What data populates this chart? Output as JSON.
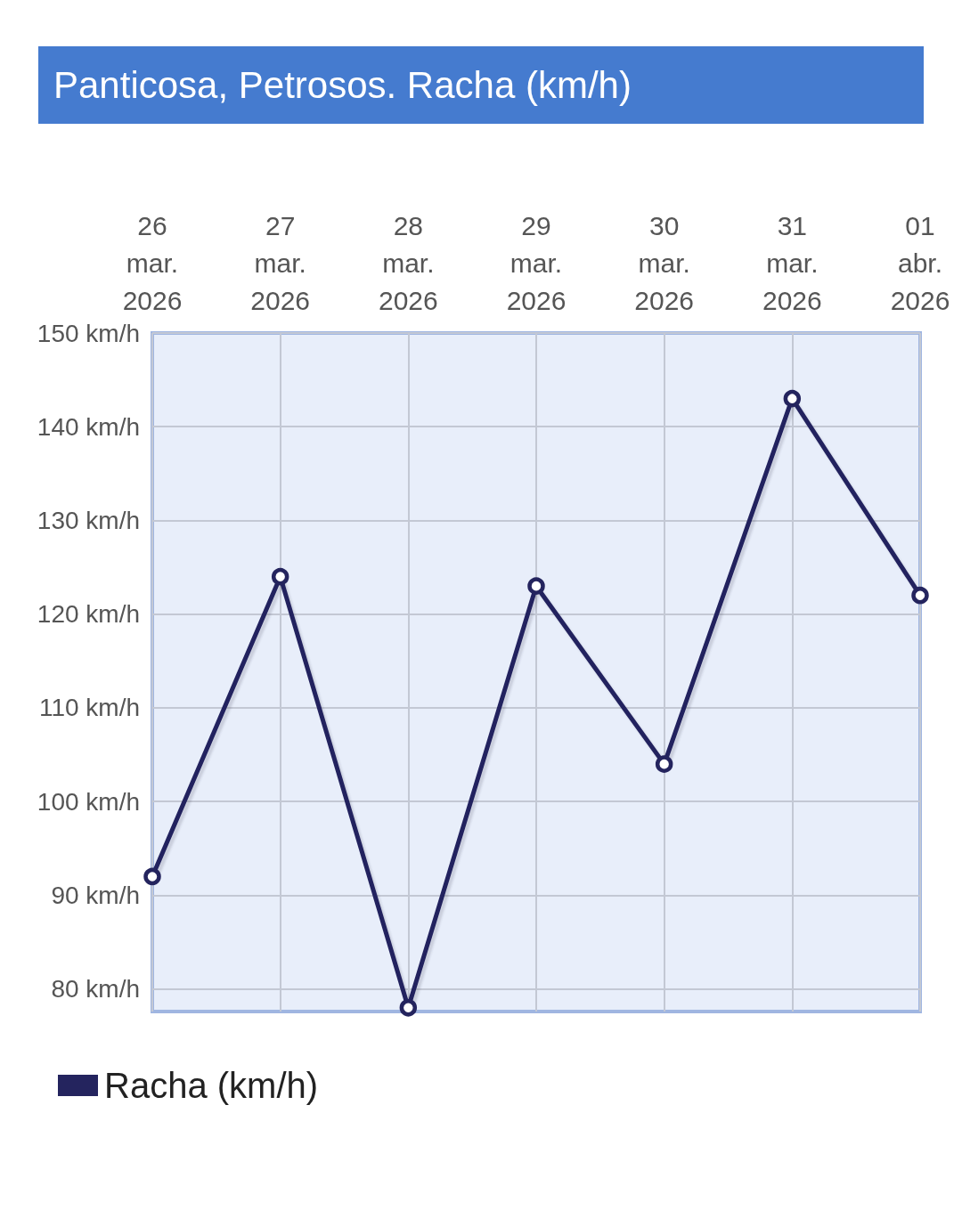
{
  "chart_data": {
    "type": "line",
    "title": "Panticosa, Petrosos. Racha (km/h)",
    "categories": [
      "26 mar. 2026",
      "27 mar. 2026",
      "28 mar. 2026",
      "29 mar. 2026",
      "30 mar. 2026",
      "31 mar. 2026",
      "01 abr. 2026"
    ],
    "series": [
      {
        "name": "Racha (km/h)",
        "color": "#24245e",
        "values": [
          92,
          124,
          78,
          123,
          104,
          143,
          122
        ]
      }
    ],
    "ylim": [
      77.6,
      150
    ],
    "yticks": [
      {
        "value": 80,
        "label": "80 km/h"
      },
      {
        "value": 90,
        "label": "90 km/h"
      },
      {
        "value": 100,
        "label": "100 km/h"
      },
      {
        "value": 110,
        "label": "110 km/h"
      },
      {
        "value": 120,
        "label": "120 km/h"
      },
      {
        "value": 130,
        "label": "130 km/h"
      },
      {
        "value": 140,
        "label": "140 km/h"
      },
      {
        "value": 150,
        "label": "150 km/h"
      }
    ],
    "grid": true,
    "legend": "bottom left",
    "marker": "circle",
    "line_style": "solid"
  }
}
